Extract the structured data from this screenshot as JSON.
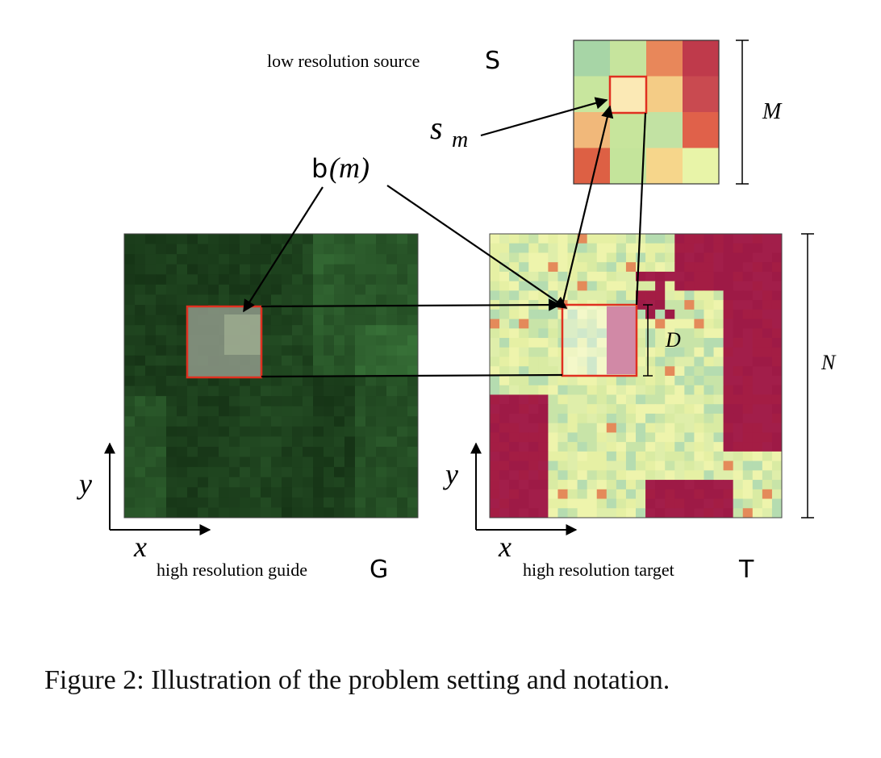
{
  "labels": {
    "source": "low resolution source",
    "source_symbol": "S",
    "guide": "high resolution guide",
    "guide_symbol": "G",
    "target": "high resolution target",
    "target_symbol": "T",
    "s_m": "s",
    "s_m_sub": "m",
    "b_m_func": "b",
    "b_m_arg": "(m)",
    "M": "M",
    "N": "N",
    "D": "D",
    "x": "x",
    "y": "y"
  },
  "caption": "Figure 2: Illustration of the problem setting and notation.",
  "colors": {
    "frame_red": "#e03020",
    "arrow": "#000000",
    "guide_dark": "#1f3322",
    "guide_mid": "#2f4a32",
    "guide_light": "#4a6b45",
    "target_red": "#a01c48",
    "target_yellow": "#e9f0a6",
    "target_teal": "#a8d6b2"
  },
  "source_grid": [
    [
      "#a7d5a6",
      "#c6e49d",
      "#e8875a",
      "#bf3a4b"
    ],
    [
      "#c8e69e",
      "#fbe9b5",
      "#f4cc86",
      "#c94a50"
    ],
    [
      "#f1b87a",
      "#c7e59c",
      "#c2e2a3",
      "#e0614a"
    ],
    [
      "#dd6044",
      "#c4e49b",
      "#f6d68b",
      "#e8f4a8"
    ]
  ]
}
